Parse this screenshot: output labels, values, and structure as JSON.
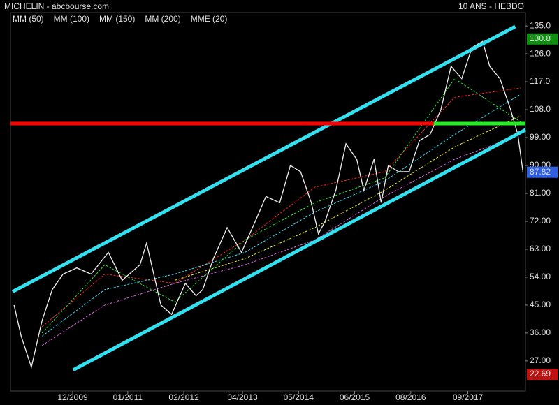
{
  "chart_data": {
    "type": "stock",
    "title": "MICHELIN - abcbourse.com",
    "subtitle": "10 ANS - HEBDO",
    "xlim": [
      2008.7,
      2018.8
    ],
    "ylim": [
      17.3,
      139.3
    ],
    "xticks": [
      {
        "value": 2009.92,
        "label": "12/2009"
      },
      {
        "value": 2011.0,
        "label": "01/2011"
      },
      {
        "value": 2012.1,
        "label": "02/2012"
      },
      {
        "value": 2013.25,
        "label": "04/2013"
      },
      {
        "value": 2014.35,
        "label": "05/2014"
      },
      {
        "value": 2015.45,
        "label": "06/2015"
      },
      {
        "value": 2016.55,
        "label": "08/2016"
      },
      {
        "value": 2017.67,
        "label": "09/2017"
      }
    ],
    "yticks": [
      {
        "value": 135,
        "label": "135.0"
      },
      {
        "value": 126,
        "label": "126.0"
      },
      {
        "value": 117,
        "label": "117.0"
      },
      {
        "value": 108,
        "label": "108.0"
      },
      {
        "value": 99,
        "label": "99.00"
      },
      {
        "value": 90,
        "label": "90.00"
      },
      {
        "value": 81,
        "label": "81.00"
      },
      {
        "value": 72,
        "label": "72.00"
      },
      {
        "value": 63,
        "label": "63.00"
      },
      {
        "value": 54,
        "label": "54.00"
      },
      {
        "value": 45,
        "label": "45.00"
      },
      {
        "value": 36,
        "label": "36.00"
      },
      {
        "value": 27,
        "label": "27.00"
      }
    ],
    "price": {
      "color": "#f0f0f0",
      "x": [
        2008.77,
        2008.91,
        2009.11,
        2009.32,
        2009.52,
        2009.73,
        2010.0,
        2010.28,
        2010.62,
        2010.89,
        2011.24,
        2011.37,
        2011.51,
        2011.65,
        2011.86,
        2012.13,
        2012.34,
        2012.47,
        2012.68,
        2012.95,
        2013.23,
        2013.5,
        2013.71,
        2013.98,
        2014.19,
        2014.39,
        2014.6,
        2014.74,
        2014.87,
        2015.08,
        2015.28,
        2015.49,
        2015.63,
        2015.83,
        2015.97,
        2016.11,
        2016.31,
        2016.52,
        2016.72,
        2016.93,
        2017.14,
        2017.34,
        2017.55,
        2017.75,
        2017.96,
        2018.1,
        2018.3,
        2018.51,
        2018.65,
        2018.75
      ],
      "values": [
        45,
        35,
        25,
        40,
        50,
        55,
        57,
        55,
        62,
        53,
        58,
        65,
        55,
        45,
        42,
        52,
        48,
        50,
        60,
        70,
        62,
        72,
        80,
        78,
        90,
        88,
        78,
        68,
        72,
        82,
        97,
        92,
        82,
        92,
        78,
        90,
        88,
        88,
        98,
        100,
        108,
        122,
        118,
        128,
        130,
        122,
        118,
        108,
        100,
        88
      ]
    },
    "series": [
      {
        "name": "MM (50)",
        "color": "#ff2020",
        "x": [
          2009.32,
          2010.55,
          2011.92,
          2013.3,
          2014.67,
          2016.04,
          2017.41,
          2018.71
        ],
        "values": [
          38,
          55,
          52,
          66,
          83,
          88,
          112,
          115
        ]
      },
      {
        "name": "MM (100)",
        "color": "#30d8f0",
        "x": [
          2009.32,
          2010.55,
          2011.92,
          2013.3,
          2014.67,
          2016.04,
          2017.41,
          2018.71
        ],
        "values": [
          35,
          50,
          55,
          62,
          75,
          85,
          100,
          113
        ]
      },
      {
        "name": "MM (150)",
        "color": "#f0f020",
        "x": [
          2011.92,
          2013.3,
          2014.67,
          2016.04,
          2017.41,
          2018.71
        ],
        "values": [
          53,
          60,
          70,
          82,
          96,
          106
        ]
      },
      {
        "name": "MM (200)",
        "color": "#e060e0",
        "x": [
          2009.32,
          2010.55,
          2011.92,
          2013.3,
          2014.67,
          2016.04,
          2017.41,
          2018.71
        ],
        "values": [
          32,
          45,
          52,
          58,
          66,
          80,
          92,
          100
        ]
      },
      {
        "name": "MME (20)",
        "color": "#30e030",
        "x": [
          2009.32,
          2010.55,
          2011.92,
          2013.3,
          2014.67,
          2016.04,
          2017.41,
          2018.71
        ],
        "values": [
          36,
          58,
          46,
          66,
          78,
          86,
          118,
          104
        ]
      }
    ],
    "lines": [
      {
        "color": "#33e0f0",
        "x": [
          2008.74,
          2018.6
        ],
        "values": [
          49.3,
          134.8
        ]
      },
      {
        "color": "#33e0f0",
        "x": [
          2009.93,
          2018.8
        ],
        "values": [
          24.1,
          101.5
        ]
      },
      {
        "color": "#ff0000",
        "x": [
          2008.7,
          2017.0
        ],
        "values": [
          103.5,
          103.5
        ]
      },
      {
        "color": "#22ee22",
        "x": [
          2017.0,
          2018.8
        ],
        "values": [
          103.5,
          103.5
        ]
      }
    ],
    "price_labels": [
      {
        "value": 130.8,
        "label": "130.8",
        "color": "#109010"
      },
      {
        "value": 87.82,
        "label": "87.82",
        "color": "#3060e0"
      },
      {
        "value": 22.69,
        "label": "22.69",
        "color": "#c01010"
      }
    ]
  }
}
